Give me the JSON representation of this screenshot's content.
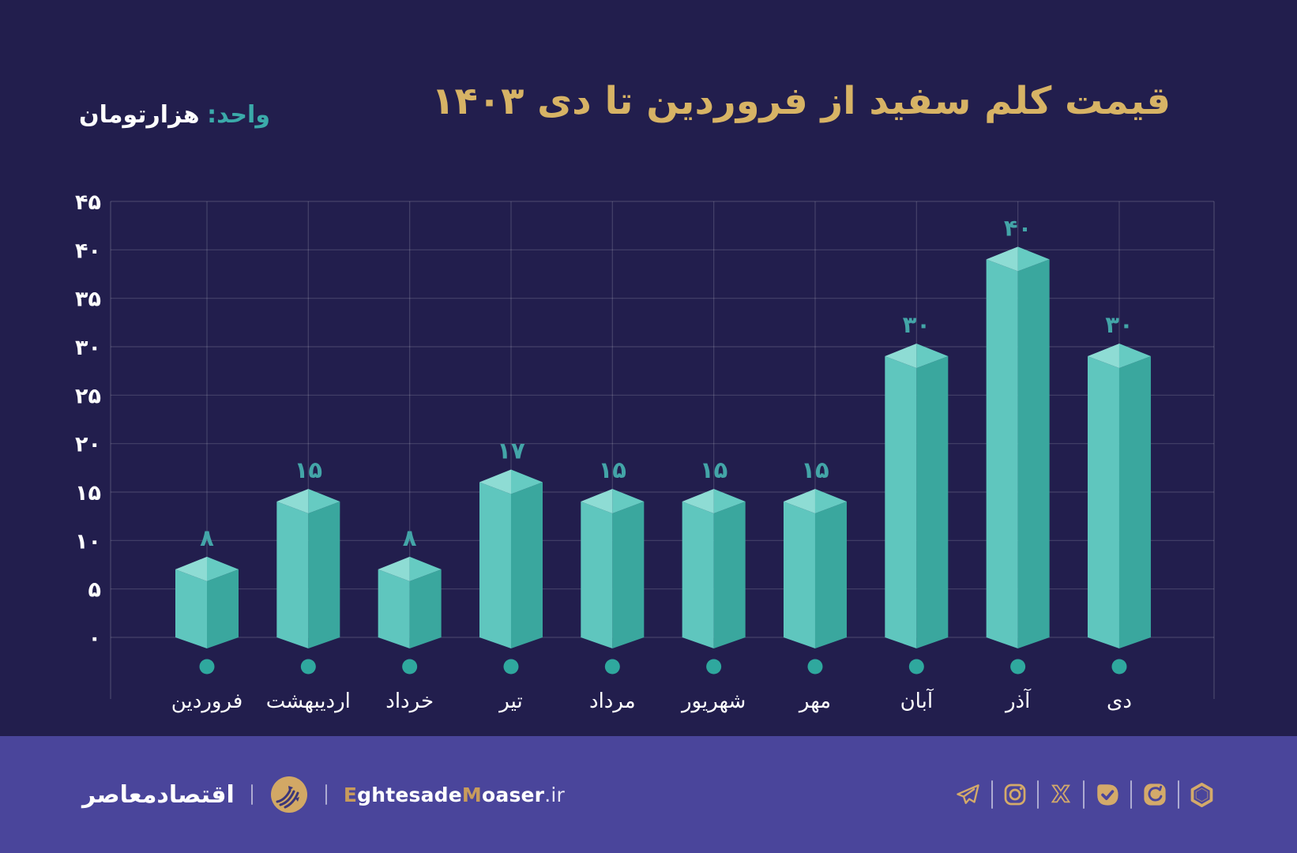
{
  "header": {
    "title": "قیمت کلم سفید از فروردین تا دی ۱۴۰۳",
    "unit_label": "واحد:",
    "unit_value": "هزارتومان"
  },
  "chart_data": {
    "type": "bar",
    "title": "قیمت کلم سفید از فروردین تا دی ۱۴۰۳",
    "ylabel": "هزارتومان",
    "xlabel": "",
    "categories": [
      "فروردین",
      "اردیبهشت",
      "خرداد",
      "تیر",
      "مرداد",
      "شهریور",
      "مهر",
      "آبان",
      "آذر",
      "دی"
    ],
    "values": [
      8,
      15,
      8,
      17,
      15,
      15,
      15,
      30,
      40,
      30
    ],
    "value_labels": [
      "۸",
      "۱۵",
      "۸",
      "۱۷",
      "۱۵",
      "۱۵",
      "۱۵",
      "۳۰",
      "۴۰",
      "۳۰"
    ],
    "ylim": [
      0,
      45
    ],
    "ytick_step": 5,
    "yticks": [
      0,
      5,
      10,
      15,
      20,
      25,
      30,
      35,
      40,
      45
    ],
    "ytick_labels": [
      "۰",
      "۵",
      "۱۰",
      "۱۵",
      "۲۰",
      "۲۵",
      "۳۰",
      "۳۵",
      "۴۰",
      "۴۵"
    ],
    "grid": true,
    "legend": "none"
  },
  "colors": {
    "background": "#221E4D",
    "footer_bg": "#4A459B",
    "title_gold": "#D7B365",
    "unit_teal": "#3BAAAA",
    "value_label_teal": "#43A5A8",
    "bar_face_left": "#5FC6BE",
    "bar_face_right": "#3AA79E",
    "bar_top_left": "#8EDCD4",
    "bar_top_right": "#66CBC2",
    "dot": "#2FA89E",
    "grid_line": "rgba(255,255,255,0.16)",
    "axis_text": "#FFFFFF",
    "icon_gold": "#D4AA6A"
  },
  "footer": {
    "brand_fa": "اقتصادمعاصر",
    "site_segments": [
      {
        "text": "E",
        "style": "gold"
      },
      {
        "text": "ghtesade",
        "style": "white"
      },
      {
        "text": "M",
        "style": "gold"
      },
      {
        "text": "oaser",
        "style": "white"
      },
      {
        "text": ".ir",
        "style": "light"
      }
    ],
    "social_icons": [
      "telegram-icon",
      "instagram-icon",
      "x-icon",
      "bale-icon",
      "eitaa-icon",
      "rubika-icon"
    ]
  }
}
